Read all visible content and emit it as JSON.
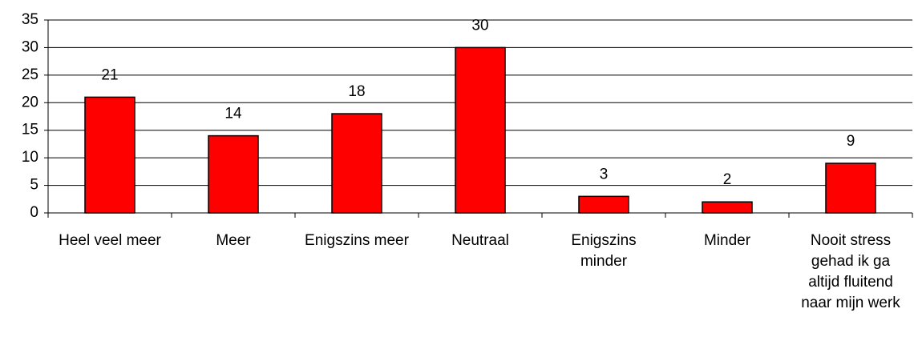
{
  "chart_data": {
    "type": "bar",
    "categories": [
      "Heel veel meer",
      "Meer",
      "Enigszins meer",
      "Neutraal",
      "Enigszins minder",
      "Minder",
      "Nooit stress gehad ik ga altijd fluitend naar mijn werk"
    ],
    "values": [
      21,
      14,
      18,
      30,
      3,
      2,
      9
    ],
    "color": "#ff0000",
    "ylim": [
      0,
      35
    ],
    "yticks": [
      0,
      5,
      10,
      15,
      20,
      25,
      30,
      35
    ],
    "grid": true
  }
}
